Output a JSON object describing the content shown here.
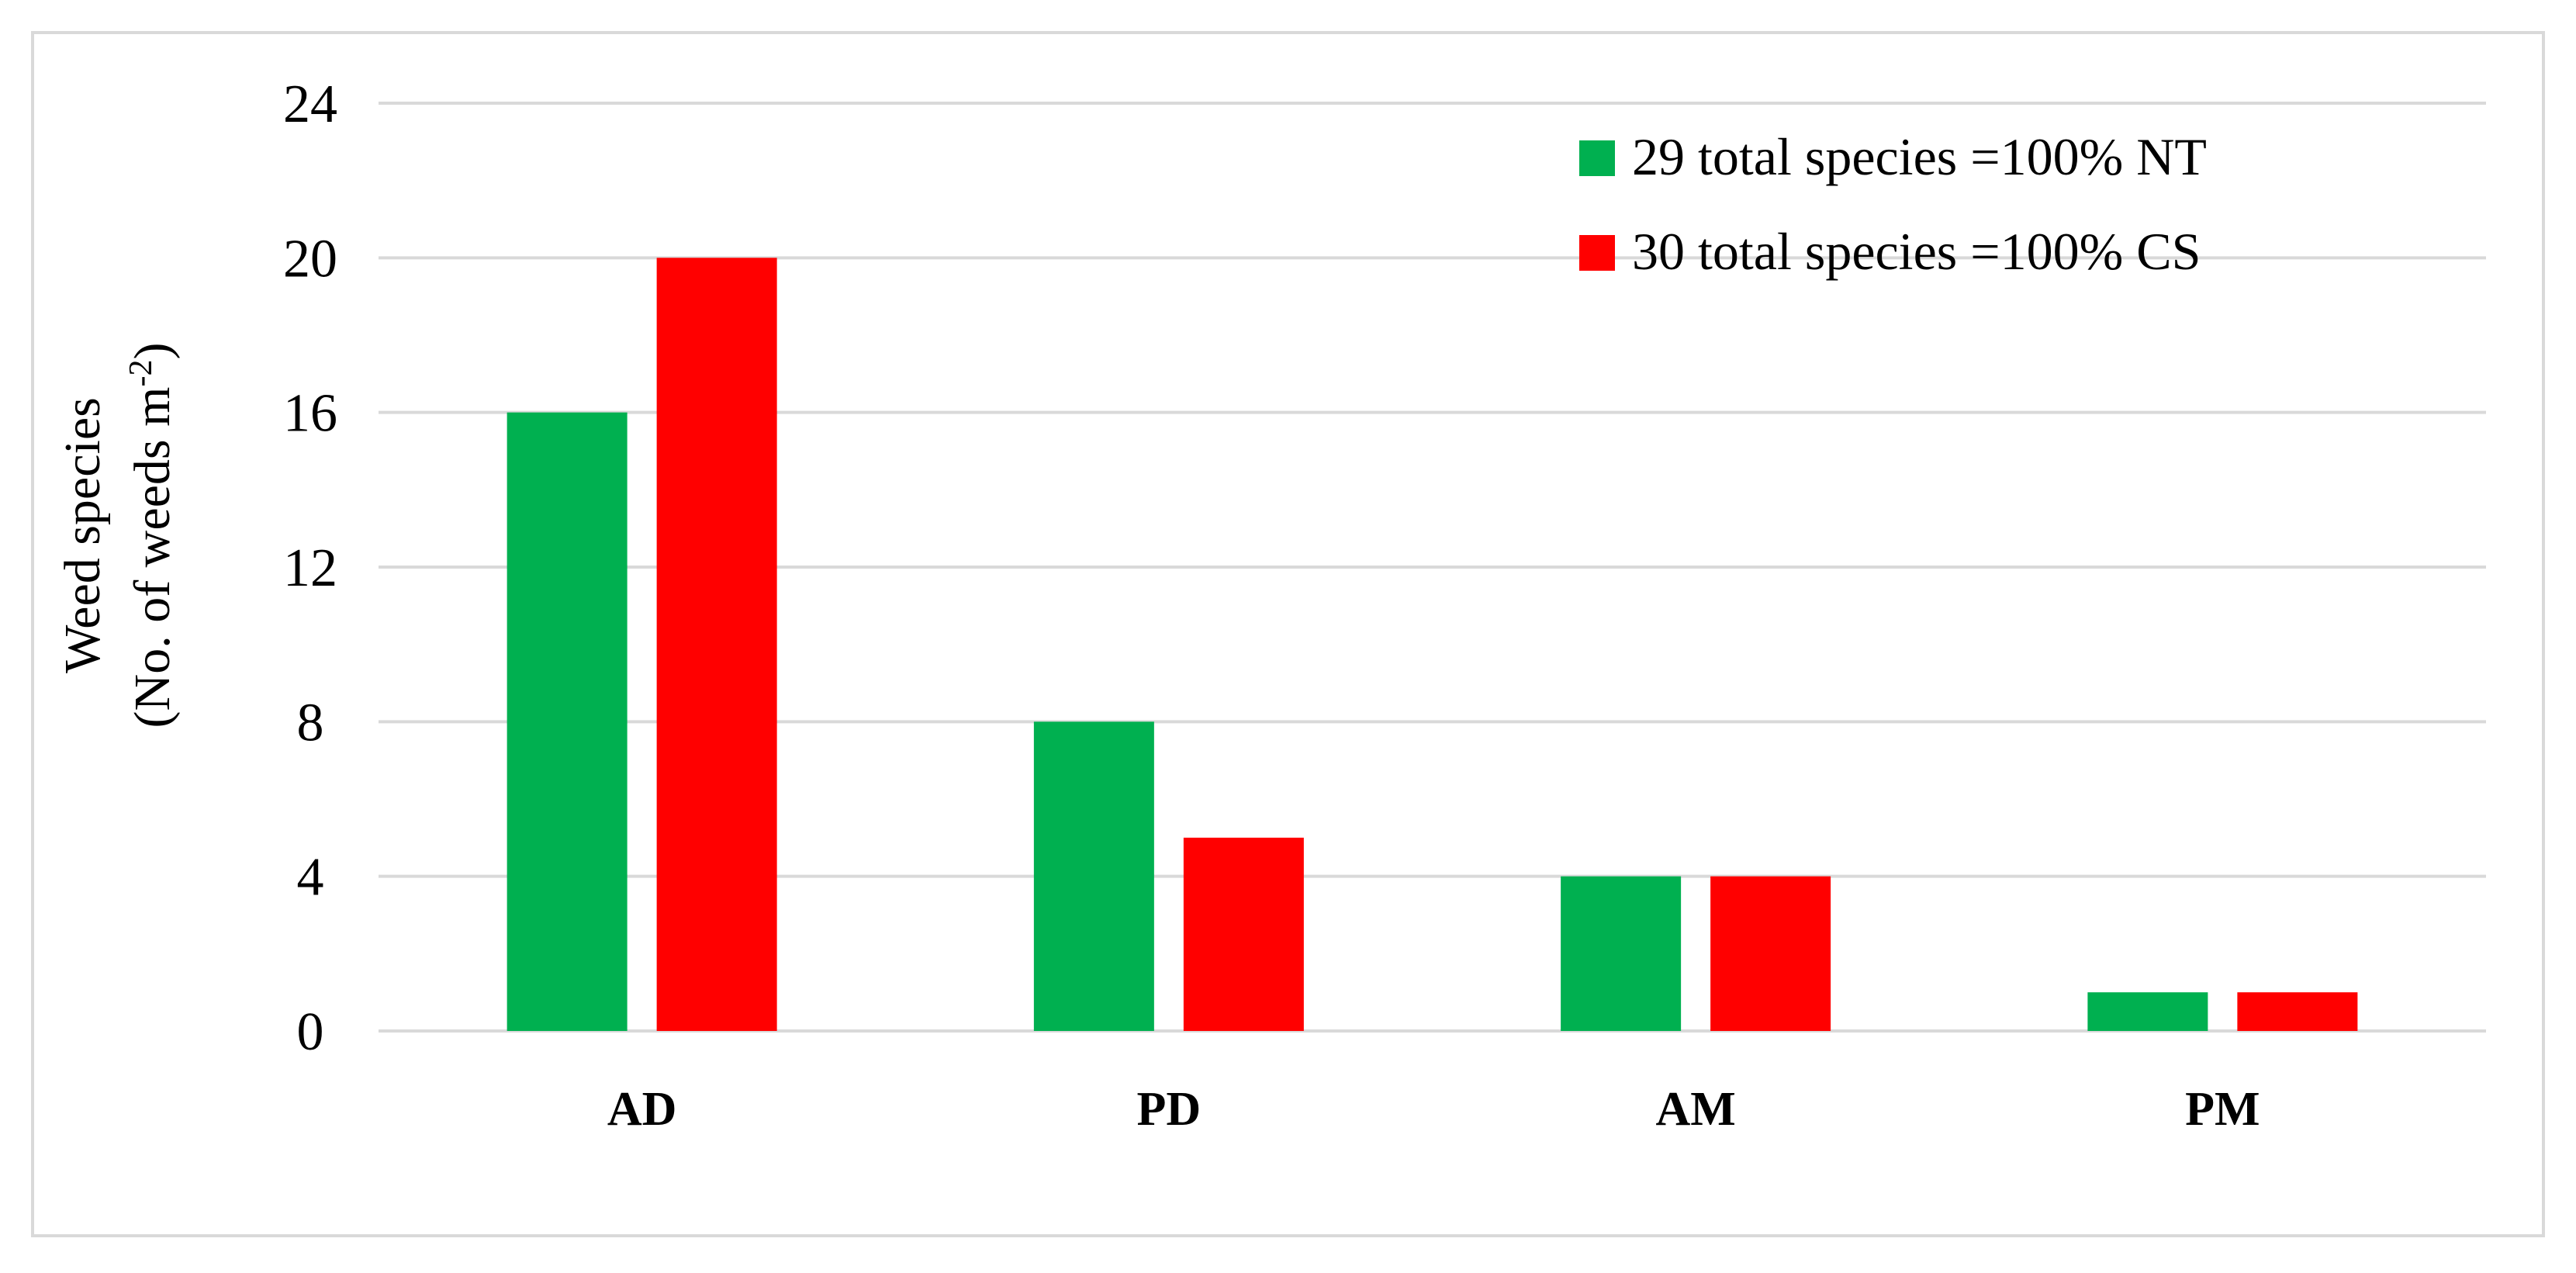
{
  "chart_data": {
    "type": "bar",
    "categories": [
      "AD",
      "PD",
      "AM",
      "PM"
    ],
    "series": [
      {
        "name": "29 total species =100% NT",
        "values": [
          16,
          8,
          4,
          1
        ],
        "color": "#00b050"
      },
      {
        "name": "30 total species =100% CS",
        "values": [
          20,
          5,
          4,
          1
        ],
        "color": "#ff0000"
      }
    ],
    "title": "",
    "xlabel": "",
    "ylabel": {
      "line1": "Weed species",
      "line2_prefix": "(No. of weeds m",
      "line2_superscript": "-2",
      "line2_suffix": ")"
    },
    "ylim": [
      0,
      24
    ],
    "yticks": [
      0,
      4,
      8,
      12,
      16,
      20,
      24
    ],
    "grid": true,
    "gridline_color": "#d9d9d9",
    "legend_position": "top-right"
  }
}
